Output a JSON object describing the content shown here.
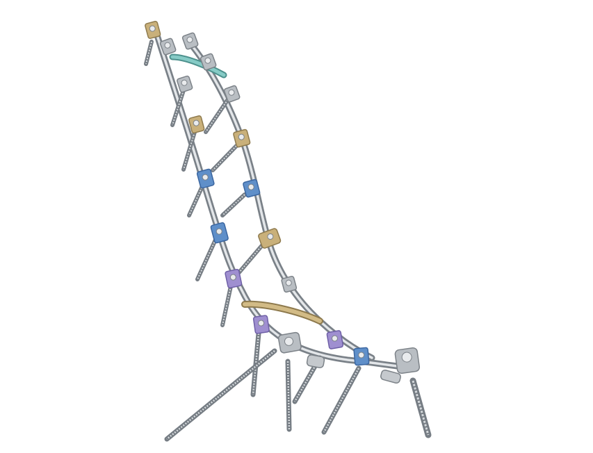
{
  "image": {
    "subject": "spinal-fixation-construct",
    "background_color": "#ffffff"
  },
  "colors": {
    "rod_light": "#dfe3e7",
    "rod_mid": "#a9b0b7",
    "rod_dark": "#6e767e",
    "screw_light": "#d6dadd",
    "screw_dark": "#6f767d",
    "gold": "#c9b07a",
    "gold_dark": "#8e7a4d",
    "blue": "#5f8fc9",
    "blue_dark": "#3b66a0",
    "purple": "#9f8fd0",
    "purple_dark": "#6e5fa6",
    "teal": "#7fc4c0",
    "teal_dark": "#4d918d",
    "silver_clamp": "#b9bec3",
    "silver_clamp_dark": "#7c8288"
  },
  "hook_colors_left_rod": [
    "gold",
    "silver",
    "silver",
    "gold",
    "blue",
    "blue",
    "purple",
    "purple",
    "silver"
  ],
  "hook_colors_right_rod": [
    "silver",
    "silver",
    "silver",
    "gold",
    "blue",
    "gold",
    "silver",
    "purple",
    "blue"
  ],
  "crosslinks": [
    "teal",
    "gold"
  ]
}
